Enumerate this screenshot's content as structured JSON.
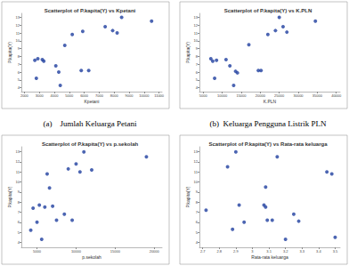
{
  "chart_data": [
    {
      "type": "scatter",
      "title": "Scatterplot of P.kapita(Y) vs Kpetani",
      "caption": "(a)    Jumlah Keluarga Petani",
      "x_label": "Kpetani",
      "y_label": "P.kapita(Y)",
      "color": "#1f3f9f",
      "marker": "circle",
      "grid": false,
      "x": [
        2700,
        2800,
        2900,
        3200,
        3300,
        4100,
        4300,
        4400,
        4700,
        5200,
        5800,
        5900,
        6300,
        7400,
        7900,
        8200,
        8500,
        10500
      ],
      "values": [
        7.5,
        5.2,
        7.7,
        7.6,
        7.4,
        6.8,
        6.0,
        4.3,
        9.4,
        10.8,
        6.2,
        11.2,
        6.2,
        11.8,
        11.3,
        11.0,
        13.0,
        12.5
      ],
      "xlim": [
        1800,
        11200
      ],
      "xticks": [
        2000,
        3000,
        4000,
        5000,
        6000,
        7000,
        8000,
        9000,
        10000,
        11000
      ],
      "ylim": [
        3.5,
        13.5
      ],
      "yticks": [
        4,
        5,
        6,
        7,
        8,
        9,
        10,
        11,
        12,
        13
      ]
    },
    {
      "type": "scatter",
      "title": "Scatterplot of P.kapita(Y) vs K.PLN",
      "caption": "(b)  Keluarga Pengguna Listrik PLN",
      "x_label": "K.PLN",
      "y_label": "P.kapita(Y)",
      "color": "#1f3f9f",
      "marker": "circle",
      "grid": false,
      "x": [
        7000,
        7500,
        8000,
        8500,
        11000,
        12000,
        13000,
        13500,
        14000,
        17000,
        19500,
        20200,
        22000,
        24000,
        25000,
        26000,
        27000,
        34500
      ],
      "values": [
        7.7,
        7.4,
        5.2,
        7.5,
        7.6,
        6.8,
        4.3,
        6.1,
        5.9,
        9.5,
        6.2,
        6.2,
        10.8,
        11.3,
        13.0,
        11.8,
        11.1,
        12.5
      ],
      "xlim": [
        4000,
        41000
      ],
      "xticks": [
        5000,
        10000,
        15000,
        20000,
        25000,
        30000,
        35000,
        40000
      ],
      "ylim": [
        3.5,
        13.5
      ],
      "yticks": [
        4,
        5,
        6,
        7,
        8,
        9,
        10,
        11,
        12,
        13
      ]
    },
    {
      "type": "scatter",
      "title": "Scatterplot of P.kapita(Y) vs p.sekolah",
      "x_label": "p.sekolah",
      "y_label": "P.kapita(Y)",
      "color": "#1f3f9f",
      "marker": "circle",
      "grid": false,
      "x": [
        4200,
        4500,
        5000,
        5300,
        5600,
        6000,
        6300,
        6600,
        7000,
        7500,
        8500,
        9000,
        9500,
        10000,
        10500,
        11000,
        12000,
        19000
      ],
      "values": [
        5.2,
        7.4,
        6.0,
        7.7,
        4.3,
        7.5,
        10.8,
        9.4,
        7.6,
        6.2,
        6.8,
        11.3,
        6.2,
        11.8,
        11.0,
        13.0,
        11.2,
        12.5
      ],
      "xlim": [
        3000,
        21000
      ],
      "xticks": [
        5000,
        10000,
        15000,
        20000
      ],
      "ylim": [
        3.5,
        13.5
      ],
      "yticks": [
        4,
        5,
        6,
        7,
        8,
        9,
        10,
        11,
        12,
        13
      ]
    },
    {
      "type": "scatter",
      "title": "Scatterplot of P.kapita(Y) vs Rata-rata keluarga",
      "x_label": "Rata-rata keluarga",
      "y_label": "P.kapita(Y)",
      "color": "#1f3f9f",
      "marker": "circle",
      "grid": false,
      "x": [
        2.72,
        2.85,
        2.88,
        2.9,
        2.92,
        2.95,
        3.07,
        3.08,
        3.08,
        3.09,
        3.12,
        3.15,
        3.2,
        3.25,
        3.28,
        3.45,
        3.48,
        3.5
      ],
      "values": [
        7.2,
        11.5,
        5.3,
        13.0,
        7.7,
        6.0,
        7.7,
        7.5,
        9.5,
        6.2,
        6.2,
        12.5,
        4.3,
        6.8,
        6.1,
        11.0,
        10.8,
        4.5
      ],
      "xlim": [
        2.68,
        3.53
      ],
      "xticks": [
        2.7,
        2.8,
        2.9,
        3.0,
        3.1,
        3.2,
        3.3,
        3.4,
        3.5
      ],
      "ylim": [
        3.5,
        13.5
      ],
      "yticks": [
        4,
        5,
        6,
        7,
        8,
        9,
        10,
        11,
        12,
        13
      ]
    }
  ]
}
